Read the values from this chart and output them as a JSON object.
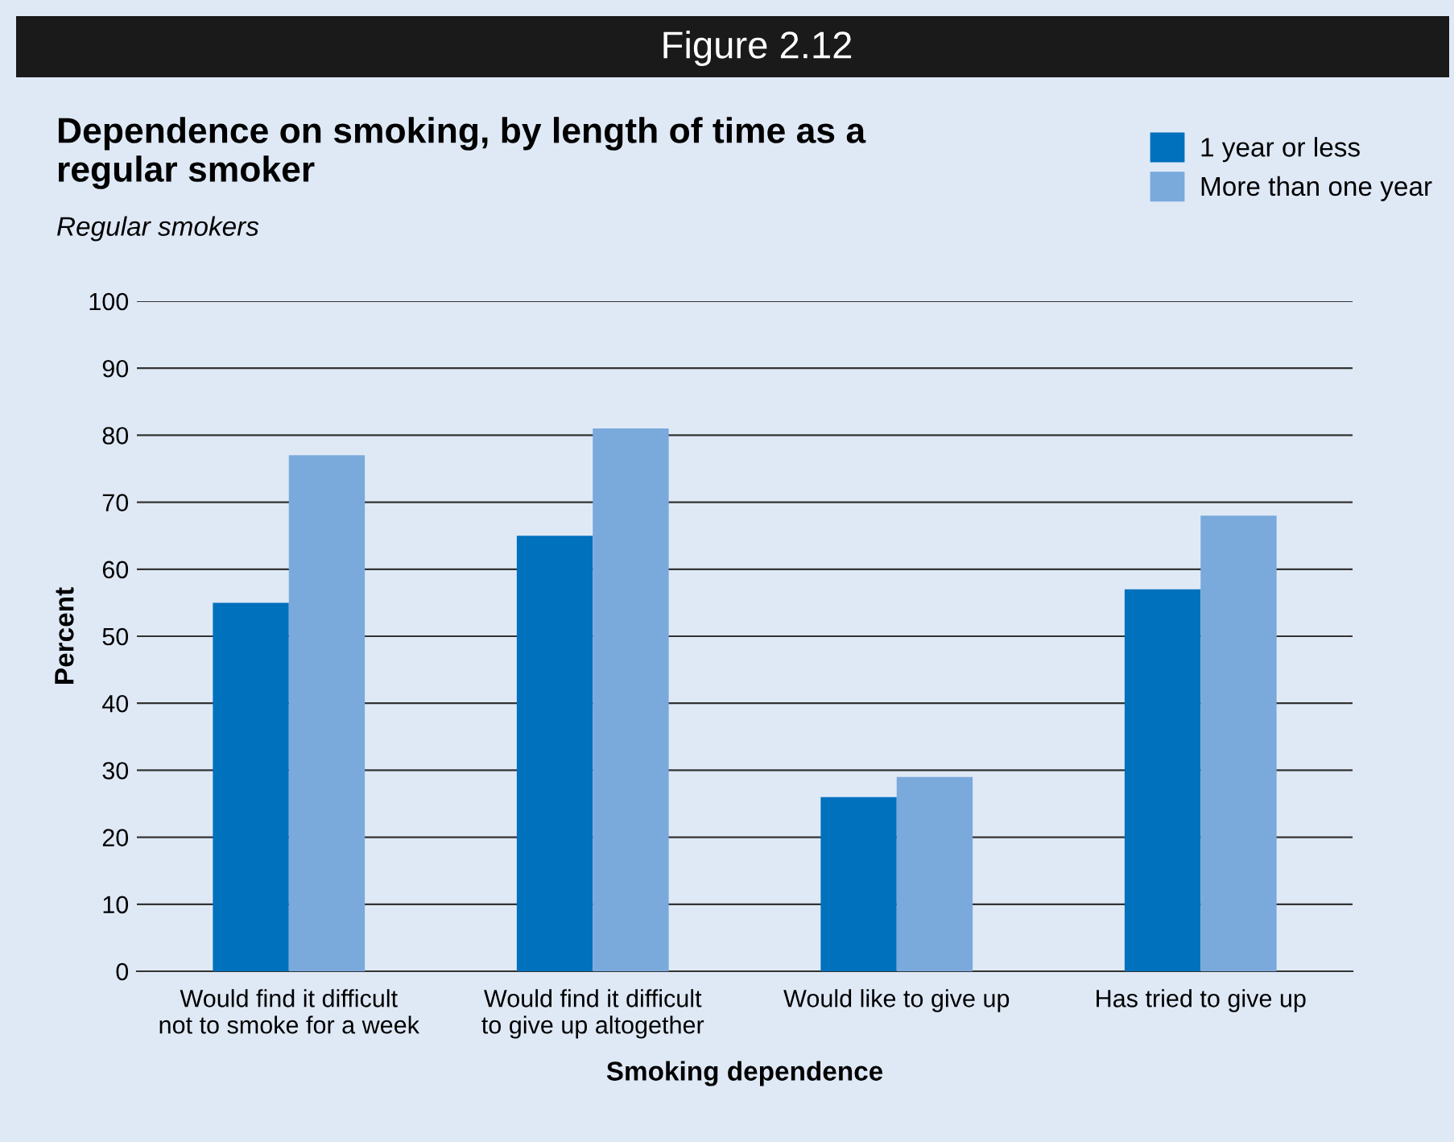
{
  "chart_data": {
    "type": "bar",
    "title": "Dependence on smoking, by length of time as a regular smoker",
    "subtitle": "Regular smokers",
    "annotations": [
      "Figure 2.12"
    ],
    "xlabel": "Smoking dependence",
    "ylabel": "Percent",
    "categories": [
      "Would find it difficult not to smoke for a week",
      "Would find it difficult to give up altogether",
      "Would like to give up",
      "Has tried to give up"
    ],
    "series": [
      {
        "name": "1 year or less",
        "color": "#0071bc",
        "values": [
          55,
          65,
          26,
          57
        ]
      },
      {
        "name": "More than one year",
        "color": "#7aa9dc",
        "values": [
          77,
          81,
          29,
          68
        ]
      }
    ],
    "ylim": [
      0,
      100
    ],
    "yticks": [
      0,
      10,
      20,
      30,
      40,
      50,
      60,
      70,
      80,
      90,
      100
    ],
    "grid": "y",
    "legend": "top right"
  }
}
